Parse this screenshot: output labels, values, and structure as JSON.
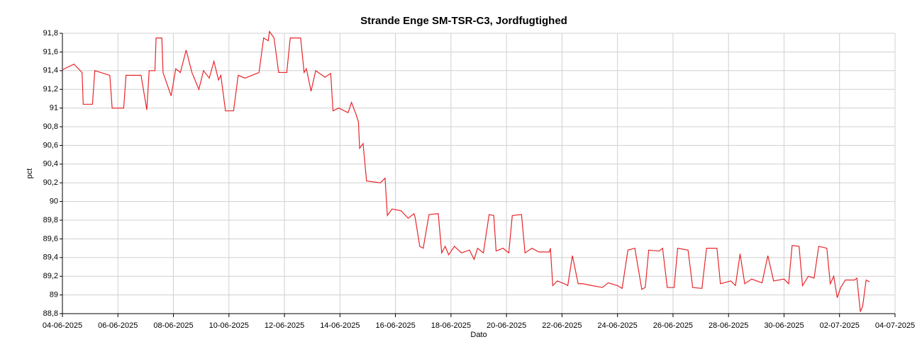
{
  "chart_data": {
    "type": "line",
    "title": "Strande Enge SM-TSR-C3, Jordfugtighed",
    "x_label": "Dato",
    "y_label": "pct",
    "xlim": [
      "2025-06-04",
      "2025-07-04"
    ],
    "xticks": [
      {
        "value": "2025-06-04",
        "label": "04-06-2025"
      },
      {
        "value": "2025-06-06",
        "label": "06-06-2025"
      },
      {
        "value": "2025-06-08",
        "label": "08-06-2025"
      },
      {
        "value": "2025-06-10",
        "label": "10-06-2025"
      },
      {
        "value": "2025-06-12",
        "label": "12-06-2025"
      },
      {
        "value": "2025-06-14",
        "label": "14-06-2025"
      },
      {
        "value": "2025-06-16",
        "label": "16-06-2025"
      },
      {
        "value": "2025-06-18",
        "label": "18-06-2025"
      },
      {
        "value": "2025-06-20",
        "label": "20-06-2025"
      },
      {
        "value": "2025-06-22",
        "label": "22-06-2025"
      },
      {
        "value": "2025-06-24",
        "label": "24-06-2025"
      },
      {
        "value": "2025-06-26",
        "label": "26-06-2025"
      },
      {
        "value": "2025-06-28",
        "label": "28-06-2025"
      },
      {
        "value": "2025-06-30",
        "label": "30-06-2025"
      },
      {
        "value": "2025-07-02",
        "label": "02-07-2025"
      },
      {
        "value": "2025-07-04",
        "label": "04-07-2025"
      }
    ],
    "ylim": [
      88.8,
      91.8
    ],
    "yticks": [
      {
        "value": 88.8,
        "label": "88,8"
      },
      89,
      {
        "value": 89.2,
        "label": "89,2"
      },
      {
        "value": 89.4,
        "label": "89,4"
      },
      {
        "value": 89.6,
        "label": "89,6"
      },
      {
        "value": 89.8,
        "label": "89,8"
      },
      90,
      {
        "value": 90.2,
        "label": "90,2"
      },
      {
        "value": 90.4,
        "label": "90,4"
      },
      {
        "value": 90.6,
        "label": "90,6"
      },
      {
        "value": 90.8,
        "label": "90,8"
      },
      91,
      {
        "value": 91.2,
        "label": "91,2"
      },
      {
        "value": 91.4,
        "label": "91,4"
      },
      {
        "value": 91.6,
        "label": "91,6"
      },
      {
        "value": 91.8,
        "label": "91,8"
      }
    ],
    "grid": true,
    "x": [
      "2025-06-04T00:00",
      "2025-06-04T10:00",
      "2025-06-04T17:00",
      "2025-06-04T18:00",
      "2025-06-05T02:00",
      "2025-06-05T04:00",
      "2025-06-05T17:00",
      "2025-06-05T19:00",
      "2025-06-06T05:00",
      "2025-06-06T07:00",
      "2025-06-06T20:00",
      "2025-06-07T01:00",
      "2025-06-07T03:00",
      "2025-06-07T08:00",
      "2025-06-07T09:00",
      "2025-06-07T14:00",
      "2025-06-07T15:00",
      "2025-06-07T22:00",
      "2025-06-08T02:00",
      "2025-06-08T06:00",
      "2025-06-08T11:00",
      "2025-06-08T16:00",
      "2025-06-08T22:00",
      "2025-06-09T02:00",
      "2025-06-09T07:00",
      "2025-06-09T11:00",
      "2025-06-09T15:00",
      "2025-06-09T17:00",
      "2025-06-09T21:00",
      "2025-06-10T04:00",
      "2025-06-10T08:00",
      "2025-06-10T14:00",
      "2025-06-11T02:00",
      "2025-06-11T06:00",
      "2025-06-11T10:00",
      "2025-06-11T11:00",
      "2025-06-11T15:00",
      "2025-06-11T19:00",
      "2025-06-12T02:00",
      "2025-06-12T05:00",
      "2025-06-12T14:00",
      "2025-06-12T17:00",
      "2025-06-12T19:00",
      "2025-06-12T23:00",
      "2025-06-13T03:00",
      "2025-06-13T11:00",
      "2025-06-13T16:00",
      "2025-06-13T18:00",
      "2025-06-13T23:00",
      "2025-06-14T07:00",
      "2025-06-14T10:00",
      "2025-06-14T14:00",
      "2025-06-14T16:00",
      "2025-06-14T17:00",
      "2025-06-14T20:00",
      "2025-06-14T23:00",
      "2025-06-15T11:00",
      "2025-06-15T15:00",
      "2025-06-15T17:00",
      "2025-06-15T21:00",
      "2025-06-16T05:00",
      "2025-06-16T11:00",
      "2025-06-16T16:00",
      "2025-06-16T17:00",
      "2025-06-16T21:00",
      "2025-06-17T00:00",
      "2025-06-17T05:00",
      "2025-06-17T13:00",
      "2025-06-17T16:00",
      "2025-06-17T19:00",
      "2025-06-17T22:00",
      "2025-06-18T03:00",
      "2025-06-18T09:00",
      "2025-06-18T16:00",
      "2025-06-18T20:00",
      "2025-06-18T23:00",
      "2025-06-19T04:00",
      "2025-06-19T09:00",
      "2025-06-19T13:00",
      "2025-06-19T15:00",
      "2025-06-19T21:00",
      "2025-06-20T02:00",
      "2025-06-20T05:00",
      "2025-06-20T13:00",
      "2025-06-20T16:00",
      "2025-06-20T22:00",
      "2025-06-21T04:00",
      "2025-06-21T13:00",
      "2025-06-21T14:00",
      "2025-06-21T16:00",
      "2025-06-21T20:00",
      "2025-06-22T02:00",
      "2025-06-22T05:00",
      "2025-06-22T09:00",
      "2025-06-22T14:00",
      "2025-06-22T18:00",
      "2025-06-23T02:00",
      "2025-06-23T11:00",
      "2025-06-23T16:00",
      "2025-06-24T00:00",
      "2025-06-24T04:00",
      "2025-06-24T09:00",
      "2025-06-24T15:00",
      "2025-06-24T21:00",
      "2025-06-25T00:00",
      "2025-06-25T03:00",
      "2025-06-25T12:00",
      "2025-06-25T15:00",
      "2025-06-25T19:00",
      "2025-06-26T01:00",
      "2025-06-26T04:00",
      "2025-06-26T13:00",
      "2025-06-26T17:00",
      "2025-06-27T01:00",
      "2025-06-27T05:00",
      "2025-06-27T14:00",
      "2025-06-27T17:00",
      "2025-06-28T02:00",
      "2025-06-28T06:00",
      "2025-06-28T10:00",
      "2025-06-28T14:00",
      "2025-06-28T20:00",
      "2025-06-29T05:00",
      "2025-06-29T10:00",
      "2025-06-29T15:00",
      "2025-06-30T00:00",
      "2025-06-30T04:00",
      "2025-06-30T07:00",
      "2025-06-30T13:00",
      "2025-06-30T16:00",
      "2025-06-30T21:00",
      "2025-07-01T02:00",
      "2025-07-01T06:00",
      "2025-07-01T13:00",
      "2025-07-01T16:00",
      "2025-07-01T19:00",
      "2025-07-01T22:00",
      "2025-07-02T01:00",
      "2025-07-02T05:00",
      "2025-07-02T13:00",
      "2025-07-02T15:00",
      "2025-07-02T18:00",
      "2025-07-02T20:00",
      "2025-07-02T23:00",
      "2025-07-03T02:00"
    ],
    "series": [
      {
        "name": "Jordfugtighed",
        "color": "#e8262a",
        "values": [
          91.41,
          91.47,
          91.38,
          91.04,
          91.04,
          91.4,
          91.35,
          91.0,
          91.0,
          91.35,
          91.35,
          90.98,
          91.4,
          91.4,
          91.75,
          91.75,
          91.38,
          91.13,
          91.42,
          91.38,
          91.62,
          91.38,
          91.2,
          91.4,
          91.32,
          91.5,
          91.3,
          91.35,
          90.97,
          90.97,
          91.35,
          91.32,
          91.38,
          91.75,
          91.72,
          91.82,
          91.75,
          91.38,
          91.38,
          91.75,
          91.75,
          91.38,
          91.42,
          91.18,
          91.4,
          91.33,
          91.37,
          90.97,
          91.0,
          90.95,
          91.06,
          90.93,
          90.85,
          90.57,
          90.62,
          90.22,
          90.2,
          90.25,
          89.85,
          89.92,
          89.9,
          89.82,
          89.87,
          89.83,
          89.52,
          89.5,
          89.86,
          89.87,
          89.45,
          89.52,
          89.43,
          89.52,
          89.45,
          89.48,
          89.38,
          89.5,
          89.45,
          89.86,
          89.85,
          89.47,
          89.5,
          89.45,
          89.85,
          89.86,
          89.45,
          89.5,
          89.46,
          89.46,
          89.5,
          89.1,
          89.15,
          89.12,
          89.1,
          89.42,
          89.12,
          89.12,
          89.1,
          89.08,
          89.13,
          89.1,
          89.07,
          89.48,
          89.5,
          89.06,
          89.08,
          89.48,
          89.47,
          89.5,
          89.08,
          89.08,
          89.5,
          89.48,
          89.08,
          89.07,
          89.5,
          89.5,
          89.12,
          89.15,
          89.1,
          89.44,
          89.12,
          89.17,
          89.13,
          89.42,
          89.15,
          89.17,
          89.12,
          89.53,
          89.52,
          89.1,
          89.2,
          89.18,
          89.52,
          89.5,
          89.12,
          89.2,
          88.97,
          89.08,
          89.16,
          89.16,
          89.18,
          88.82,
          88.88,
          89.16,
          89.14
        ]
      }
    ]
  }
}
